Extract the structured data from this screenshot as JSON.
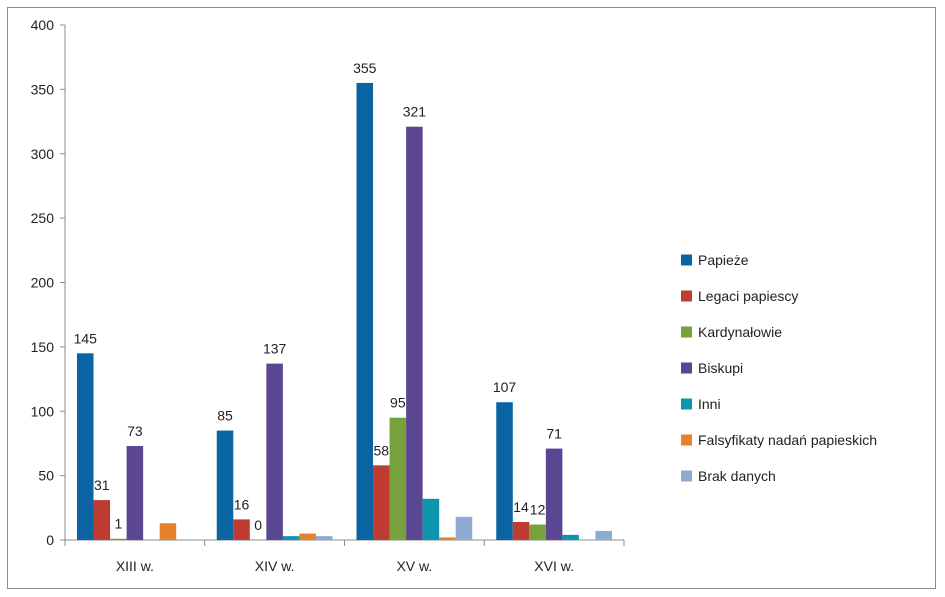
{
  "chart_data": {
    "type": "bar",
    "categories": [
      "XIII w.",
      "XIV w.",
      "XV w.",
      "XVI w."
    ],
    "ylim": [
      0,
      400
    ],
    "yticks": [
      0,
      50,
      100,
      150,
      200,
      250,
      300,
      350,
      400
    ],
    "ytick_labels": [
      "0",
      "50",
      "100",
      "150",
      "200",
      "250",
      "300",
      "350",
      "400"
    ],
    "legend_position": "right",
    "grid": false,
    "series": [
      {
        "name": "Papieże",
        "color": "#0a64a4",
        "values": [
          145,
          85,
          355,
          107
        ],
        "labels": [
          "145",
          "85",
          "355",
          "107"
        ]
      },
      {
        "name": "Legaci papiescy",
        "color": "#be3c32",
        "values": [
          31,
          16,
          58,
          14
        ],
        "labels": [
          "31",
          "16",
          "58",
          "14"
        ]
      },
      {
        "name": "Kardynałowie",
        "color": "#78a03c",
        "values": [
          1,
          0,
          95,
          12
        ],
        "labels": [
          "1",
          "0",
          "95",
          "12"
        ]
      },
      {
        "name": "Biskupi",
        "color": "#5a4691",
        "values": [
          73,
          137,
          321,
          71
        ],
        "labels": [
          "73",
          "137",
          "321",
          "71"
        ]
      },
      {
        "name": "Inni",
        "color": "#0f96af",
        "values": [
          0,
          3,
          32,
          4
        ],
        "labels": [
          "",
          "",
          "",
          ""
        ]
      },
      {
        "name": "Falsyfikaty nadań papieskich",
        "color": "#e6822d",
        "values": [
          13,
          5,
          2,
          0
        ],
        "labels": [
          "",
          "",
          "",
          ""
        ]
      },
      {
        "name": "Brak danych",
        "color": "#8caad2",
        "values": [
          0,
          3,
          18,
          7
        ],
        "labels": [
          "",
          "",
          "",
          ""
        ]
      }
    ]
  }
}
